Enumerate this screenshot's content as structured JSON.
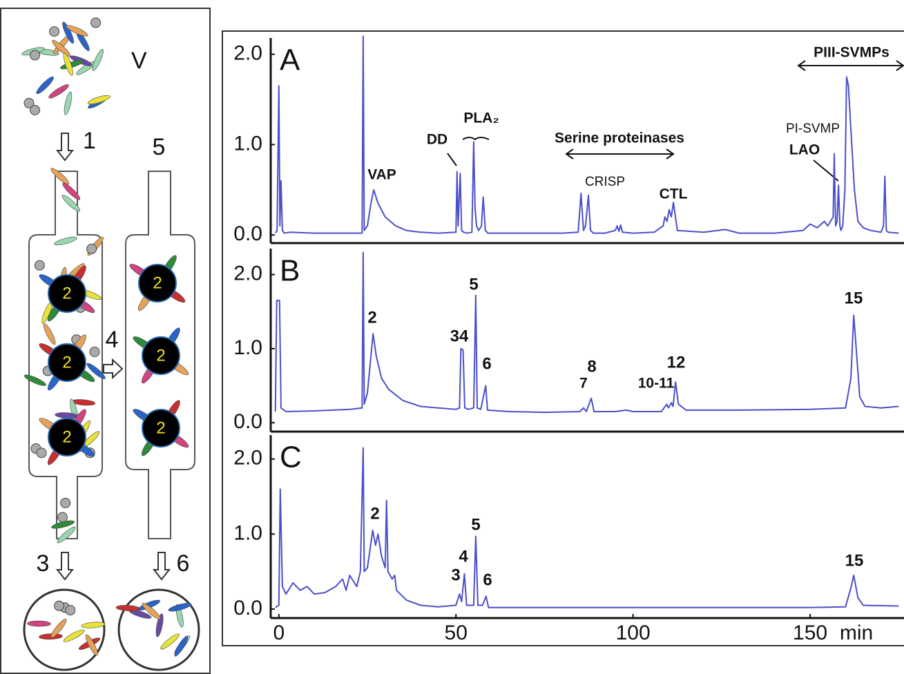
{
  "diagram": {
    "venom": "V",
    "steps": [
      "1",
      "3",
      "4",
      "5",
      "6"
    ],
    "beads": [
      "2",
      "2",
      "2",
      "2",
      "2",
      "2"
    ]
  },
  "chart_data": [
    {
      "type": "line",
      "panel": "A",
      "color": "#4b4fc8",
      "annotations": [
        "VAP",
        "DD",
        "PLA₂",
        "Serine proteinases",
        "CRISP",
        "CTL",
        "PI-SVMP",
        "LAO",
        "PIII-SVMPs"
      ],
      "x": [
        -1,
        -0.5,
        0,
        0.3,
        0.6,
        1,
        1.5,
        3,
        10,
        20,
        23.5,
        23.8,
        24.1,
        25,
        26,
        26.8,
        28,
        30,
        33,
        36,
        40,
        45,
        50,
        50.3,
        50.6,
        51.2,
        51.6,
        52.2,
        53,
        54.5,
        55,
        55.4,
        55.8,
        56.4,
        57.2,
        57.7,
        58.3,
        59,
        62,
        70,
        80,
        84.5,
        85.3,
        86,
        86.6,
        87.4,
        88,
        88.8,
        92,
        95,
        95.5,
        96,
        96.5,
        97,
        100,
        106,
        108.5,
        109,
        109.6,
        110.2,
        110.8,
        111.4,
        112.5,
        120,
        126,
        130,
        140,
        148,
        150,
        152,
        154,
        155,
        156.5,
        156.8,
        157.2,
        157.6,
        158,
        158.4,
        158.7,
        159.2,
        159.8,
        160.3,
        160.8,
        161.6,
        162.5,
        163.5,
        165,
        167,
        170,
        170.7,
        171.1,
        171.5,
        172,
        175
      ],
      "values": [
        0.02,
        0.05,
        1.65,
        0.1,
        0.6,
        0.05,
        0.02,
        0.03,
        0.02,
        0.02,
        0.02,
        2.2,
        0.05,
        0.1,
        0.35,
        0.5,
        0.35,
        0.2,
        0.1,
        0.05,
        0.03,
        0.02,
        0.03,
        0.7,
        0.1,
        0.68,
        0.05,
        0.03,
        0.02,
        0.03,
        1.03,
        0.3,
        0.1,
        0.05,
        0.1,
        0.42,
        0.05,
        0.02,
        0.02,
        0.02,
        0.02,
        0.03,
        0.46,
        0.05,
        0.1,
        0.44,
        0.05,
        0.02,
        0.02,
        0.05,
        0.1,
        0.04,
        0.11,
        0.03,
        0.02,
        0.03,
        0.1,
        0.2,
        0.15,
        0.28,
        0.2,
        0.36,
        0.05,
        0.03,
        0.06,
        0.02,
        0.02,
        0.05,
        0.12,
        0.08,
        0.15,
        0.1,
        0.2,
        0.9,
        0.1,
        0.15,
        0.55,
        0.1,
        0.05,
        0.1,
        0.5,
        1.75,
        1.65,
        1.1,
        0.5,
        0.15,
        0.08,
        0.05,
        0.03,
        0.1,
        0.65,
        0.05,
        0.03,
        0.02
      ],
      "xlim": [
        -2.3,
        176.5
      ],
      "ylim": [
        -0.09,
        2.18
      ],
      "yticks": [
        {
          "value": 0,
          "label": "0.0"
        },
        {
          "value": 1,
          "label": "1.0"
        },
        {
          "value": 2,
          "label": "2.0"
        }
      ]
    },
    {
      "type": "line",
      "panel": "B",
      "color": "#4b4fc8",
      "annotations": [
        "2",
        "34",
        "5",
        "6",
        "7",
        "8",
        "10-11",
        "12",
        "15"
      ],
      "x": [
        -1,
        -0.6,
        0.2,
        0.6,
        2,
        10,
        20,
        23.5,
        23.8,
        24.1,
        25,
        26,
        26.6,
        27.5,
        29,
        31,
        35,
        40,
        45,
        50,
        51,
        51.4,
        52,
        52.5,
        53.5,
        55,
        55.6,
        56,
        57,
        58.4,
        58.9,
        65,
        75,
        85,
        86,
        86.8,
        88.2,
        89,
        95,
        98,
        100,
        108,
        109.5,
        110,
        110.8,
        111.3,
        112,
        112.8,
        115,
        130,
        150,
        160,
        161.5,
        162.3,
        163,
        164,
        165.5,
        170,
        175
      ],
      "values": [
        0.15,
        1.65,
        1.65,
        0.2,
        0.15,
        0.16,
        0.18,
        0.2,
        2.3,
        0.25,
        0.4,
        0.9,
        1.2,
        0.9,
        0.6,
        0.45,
        0.3,
        0.22,
        0.2,
        0.18,
        0.2,
        1.0,
        0.98,
        0.2,
        0.18,
        0.2,
        1.72,
        0.2,
        0.18,
        0.5,
        0.17,
        0.15,
        0.14,
        0.15,
        0.2,
        0.15,
        0.33,
        0.15,
        0.15,
        0.17,
        0.15,
        0.15,
        0.25,
        0.2,
        0.27,
        0.22,
        0.55,
        0.25,
        0.17,
        0.17,
        0.18,
        0.2,
        0.6,
        1.45,
        1.0,
        0.35,
        0.22,
        0.2,
        0.22
      ],
      "xlim": [
        -2.3,
        176.5
      ],
      "ylim": [
        -0.12,
        2.35
      ],
      "yticks": [
        {
          "value": 0,
          "label": "0.0"
        },
        {
          "value": 1,
          "label": "1.0"
        },
        {
          "value": 2,
          "label": "2.0"
        }
      ]
    },
    {
      "type": "line",
      "panel": "C",
      "color": "#4b4fc8",
      "annotations": [
        "2",
        "3",
        "4",
        "5",
        "6",
        "15"
      ],
      "x": [
        -1,
        0,
        0.4,
        1,
        2,
        4,
        6,
        8,
        10,
        13,
        16,
        18,
        19,
        20,
        22,
        23,
        23.8,
        24.1,
        25,
        26.5,
        27.3,
        28,
        29,
        30,
        30.4,
        30.8,
        32,
        32.7,
        33.2,
        36,
        40,
        45,
        50,
        51,
        51.6,
        52.4,
        53,
        55,
        55.6,
        56.2,
        57.5,
        58.5,
        59.2,
        70,
        100,
        150,
        160,
        161.6,
        162.3,
        163.5,
        165,
        175
      ],
      "values": [
        0.02,
        0.05,
        1.6,
        0.3,
        0.2,
        0.35,
        0.25,
        0.3,
        0.2,
        0.22,
        0.3,
        0.4,
        0.25,
        0.45,
        0.3,
        0.5,
        2.15,
        0.5,
        0.55,
        1.05,
        0.85,
        1.0,
        0.7,
        0.55,
        1.45,
        0.5,
        0.4,
        0.45,
        0.25,
        0.12,
        0.05,
        0.03,
        0.05,
        0.2,
        0.1,
        0.47,
        0.05,
        0.05,
        0.97,
        0.05,
        0.05,
        0.17,
        0.02,
        0.02,
        0.02,
        0.02,
        0.03,
        0.3,
        0.45,
        0.15,
        0.05,
        0.04
      ],
      "xlim": [
        -2.3,
        176.5
      ],
      "ylim": [
        -0.12,
        2.32
      ],
      "yticks": [
        {
          "value": 0,
          "label": "0.0"
        },
        {
          "value": 1,
          "label": "1.0"
        },
        {
          "value": 2,
          "label": "2.0"
        }
      ],
      "xticks": [
        0,
        50,
        100,
        150
      ],
      "x_label": "min"
    }
  ]
}
